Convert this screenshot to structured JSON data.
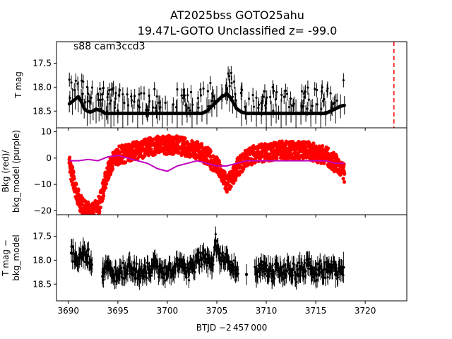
{
  "title": {
    "line1": "AT2025bss  GOTO25ahu",
    "line2": "19.47L-GOTO Unclassified z= -99.0"
  },
  "xlabel": "BTJD −2 457 000",
  "xticks": [
    3690,
    3695,
    3700,
    3705,
    3710,
    3715,
    3720
  ],
  "xlim": [
    3688.8,
    3724.2
  ],
  "marker_line": {
    "x": 3722.9,
    "color": "#ff0000",
    "style": "dashed"
  },
  "chart_data": [
    {
      "type": "scatter",
      "id": "tmag",
      "annotation": "s88 cam3ccd3",
      "ylabel": "T mag",
      "ylim": [
        18.85,
        17.05
      ],
      "yticks": [
        17.5,
        18.0,
        18.5
      ],
      "ytick_labels": [
        "17.5",
        "18.0",
        "18.5"
      ],
      "color": "#000000",
      "series": [
        {
          "x": [
            3690.1,
            3690.4,
            3690.7,
            3691.0,
            3691.3,
            3691.6,
            3691.9,
            3692.2,
            3692.5,
            3692.8,
            3693.1,
            3693.4,
            3693.7,
            3694.0,
            3694.3,
            3694.6,
            3695.0,
            3695.5,
            3696.0,
            3696.5,
            3697.0,
            3697.5,
            3698.0,
            3698.5,
            3699.0,
            3699.5,
            3700.0,
            3700.5,
            3701.0,
            3701.5,
            3702.0,
            3702.5,
            3703.0,
            3703.5,
            3704.0,
            3704.5,
            3705.0,
            3705.5,
            3706.0,
            3706.3,
            3706.6,
            3707.0,
            3707.5,
            3708.0,
            3708.5,
            3709.0,
            3709.5,
            3710.0,
            3710.5,
            3711.0,
            3711.5,
            3712.0,
            3712.5,
            3713.0,
            3713.5,
            3714.0,
            3714.5,
            3715.0,
            3715.5,
            3716.0,
            3716.5,
            3717.0,
            3717.5,
            3717.9
          ],
          "y": [
            18.35,
            18.3,
            18.25,
            18.2,
            18.3,
            18.45,
            18.5,
            18.52,
            18.5,
            18.46,
            18.48,
            18.5,
            18.55,
            18.55,
            18.55,
            18.55,
            18.55,
            18.55,
            18.55,
            18.55,
            18.55,
            18.55,
            18.55,
            18.55,
            18.55,
            18.55,
            18.55,
            18.55,
            18.55,
            18.55,
            18.55,
            18.55,
            18.55,
            18.55,
            18.5,
            18.4,
            18.3,
            18.2,
            18.15,
            18.2,
            18.3,
            18.45,
            18.52,
            18.55,
            18.55,
            18.55,
            18.55,
            18.55,
            18.55,
            18.55,
            18.55,
            18.55,
            18.55,
            18.55,
            18.55,
            18.55,
            18.55,
            18.55,
            18.55,
            18.55,
            18.5,
            18.45,
            18.4,
            18.38
          ]
        }
      ]
    },
    {
      "type": "scatter",
      "id": "bkg",
      "ylabel": "Bkg (red)/\nbkg_model (purple)",
      "ylabel_lines": [
        "Bkg (red)/",
        "bkg_model (purple)"
      ],
      "ylim": [
        -21.5,
        11.5
      ],
      "yticks": [
        10,
        0,
        -10,
        -20
      ],
      "ytick_labels": [
        "10",
        "0",
        "−10",
        "−20"
      ],
      "series": [
        {
          "name": "Bkg",
          "color": "#ff0000",
          "x": [
            3690.1,
            3690.5,
            3691.0,
            3691.5,
            3692.0,
            3692.5,
            3693.0,
            3693.5,
            3694.0,
            3694.5,
            3695.0,
            3696.0,
            3697.0,
            3698.0,
            3699.0,
            3700.0,
            3701.0,
            3702.0,
            3703.0,
            3704.0,
            3705.0,
            3705.5,
            3706.0,
            3706.5,
            3707.0,
            3708.0,
            3709.0,
            3710.0,
            3711.0,
            3712.0,
            3713.0,
            3714.0,
            3715.0,
            3716.0,
            3717.0,
            3717.9
          ],
          "y": [
            -2,
            -8,
            -15,
            -19,
            -20,
            -20,
            -19,
            -12,
            -5,
            -1,
            1,
            2,
            3,
            4,
            5,
            5,
            5,
            4,
            3,
            1,
            -3,
            -6,
            -10,
            -8,
            -4,
            0,
            2,
            2,
            3,
            3,
            3,
            3,
            2,
            1,
            -2,
            -6
          ]
        },
        {
          "name": "bkg_model",
          "color": "#bf00bf",
          "x": [
            3690.1,
            3691.0,
            3692.0,
            3693.0,
            3694.0,
            3695.0,
            3696.0,
            3697.0,
            3698.0,
            3699.0,
            3700.0,
            3701.0,
            3702.0,
            3703.0,
            3704.0,
            3705.0,
            3706.0,
            3707.0,
            3708.0,
            3709.0,
            3710.0,
            3711.0,
            3712.0,
            3713.0,
            3714.0,
            3715.0,
            3716.0,
            3717.0,
            3717.9
          ],
          "y": [
            -1,
            -1,
            -0.5,
            -1,
            0.5,
            1,
            0,
            -1,
            -2,
            -4,
            -5,
            -3,
            -2,
            -1,
            -2,
            -3,
            -3,
            -2,
            -1,
            -1,
            -1,
            -1,
            -1,
            -1,
            -1,
            -1,
            -1,
            -2,
            -2
          ]
        }
      ]
    },
    {
      "type": "scatter",
      "id": "tmag_bkg",
      "ylabel": "T mag −\nbkg_model",
      "ylabel_lines": [
        "T mag −",
        "bkg_model"
      ],
      "ylim": [
        18.85,
        17.05
      ],
      "yticks": [
        17.5,
        18.0,
        18.5
      ],
      "ytick_labels": [
        "17.5",
        "18.0",
        "18.5"
      ],
      "color": "#000000",
      "series": [
        {
          "x": [
            3690.3,
            3690.7,
            3691.1,
            3691.5,
            3691.9,
            3692.3,
            3693.5,
            3694.0,
            3694.4,
            3694.8,
            3695.2,
            3695.7,
            3696.2,
            3696.7,
            3697.2,
            3697.7,
            3698.2,
            3698.7,
            3699.2,
            3699.7,
            3700.2,
            3700.7,
            3701.2,
            3701.7,
            3702.2,
            3702.7,
            3703.2,
            3703.7,
            3704.1,
            3704.5,
            3704.9,
            3705.3,
            3706.1,
            3706.5,
            3706.9,
            3708.0,
            3709.0,
            3709.4,
            3709.8,
            3710.2,
            3710.6,
            3711.0,
            3711.4,
            3711.8,
            3712.2,
            3712.6,
            3713.0,
            3713.4,
            3713.8,
            3714.2,
            3714.6,
            3715.0,
            3715.4,
            3715.8,
            3716.2,
            3716.6,
            3717.0,
            3717.4,
            3717.8
          ],
          "y": [
            17.85,
            17.9,
            17.95,
            17.85,
            17.9,
            18.0,
            18.25,
            18.15,
            18.2,
            18.3,
            18.2,
            18.25,
            18.1,
            18.2,
            18.3,
            18.2,
            18.25,
            18.1,
            18.2,
            18.3,
            18.2,
            18.25,
            18.0,
            18.15,
            18.25,
            18.1,
            18.0,
            17.95,
            18.05,
            18.15,
            17.6,
            18.0,
            18.0,
            18.1,
            18.2,
            18.3,
            18.25,
            18.2,
            18.1,
            18.2,
            18.3,
            18.15,
            18.2,
            18.3,
            18.1,
            18.2,
            18.3,
            18.15,
            18.25,
            18.1,
            18.2,
            18.3,
            18.15,
            18.2,
            18.25,
            18.1,
            18.3,
            18.2,
            18.15
          ]
        }
      ]
    }
  ]
}
